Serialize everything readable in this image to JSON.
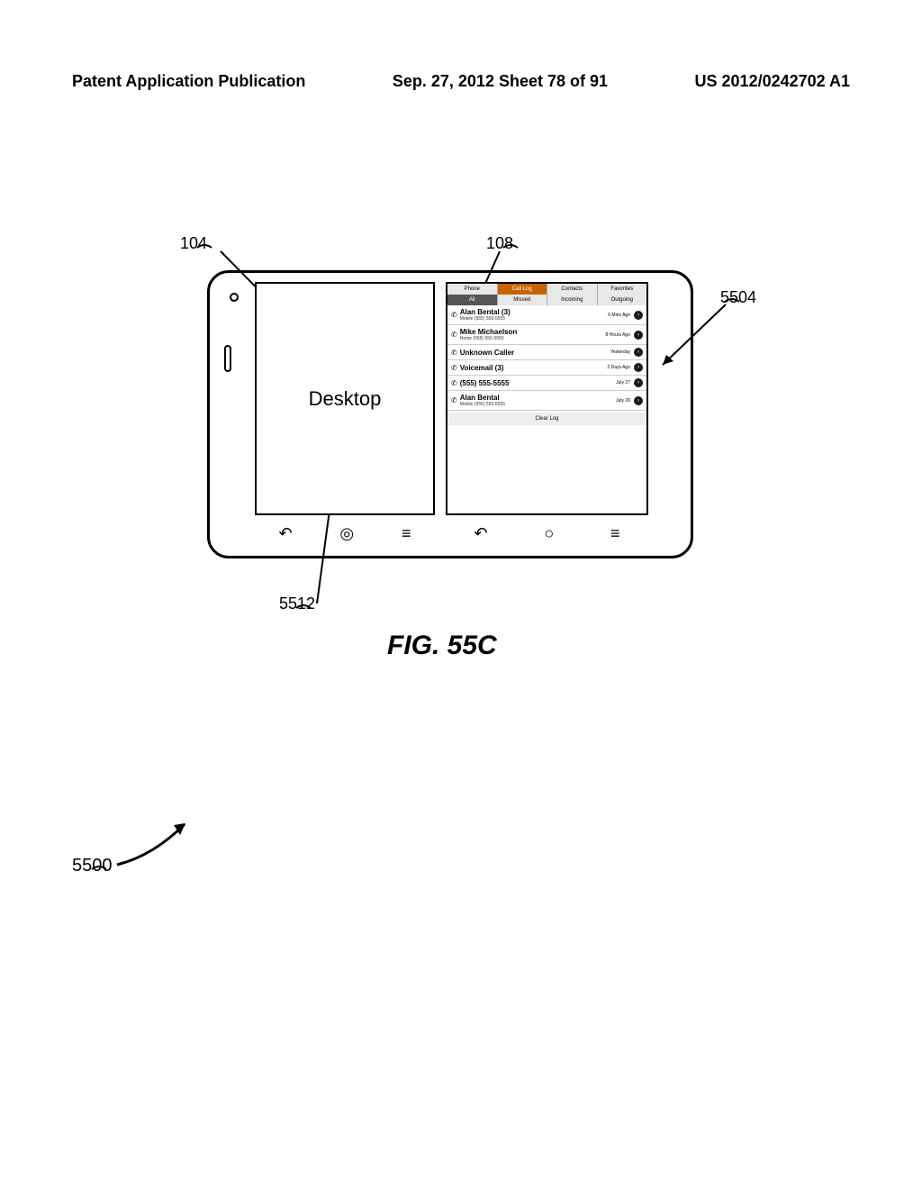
{
  "header": {
    "left": "Patent Application Publication",
    "center": "Sep. 27, 2012  Sheet 78 of 91",
    "right": "US 2012/0242702 A1"
  },
  "refs": {
    "r104": "104",
    "r108": "108",
    "r5504": "5504",
    "r5512": "5512",
    "r5500": "5500"
  },
  "fig_label": "FIG. 55C",
  "left_screen": {
    "label": "Desktop"
  },
  "nav_icons": {
    "back": "↶",
    "home_circle": "◎",
    "home_house": "⌂",
    "menu": "≡",
    "circle_o": "○"
  },
  "right_screen": {
    "tabs_top": [
      {
        "label": "Phone",
        "active": false
      },
      {
        "label": "Call Log",
        "active": true
      },
      {
        "label": "Contacts",
        "active": false
      },
      {
        "label": "Favorites",
        "active": false
      }
    ],
    "tabs_mid": [
      {
        "label": "All",
        "dark": true
      },
      {
        "label": "Missed",
        "dark": false
      },
      {
        "label": "Incoming",
        "dark": false
      },
      {
        "label": "Outgoing",
        "dark": false
      }
    ],
    "calls": [
      {
        "name": "Alan Bental (3)",
        "sub": "Mobile (555) 555-5555",
        "time": "6 Mins Ago"
      },
      {
        "name": "Mike Michaelson",
        "sub": "Home (555) 555-5555",
        "time": "8 Hours Ago"
      },
      {
        "name": "Unknown Caller",
        "sub": "",
        "time": "Yesterday"
      },
      {
        "name": "Voicemail (3)",
        "sub": "",
        "time": "2 Days Ago"
      },
      {
        "name": "(555) 555-5555",
        "sub": "",
        "time": "July 27"
      },
      {
        "name": "Alan Bental",
        "sub": "Mobile (555) 555-5555",
        "time": "July 26"
      }
    ],
    "clear": "Clear Log",
    "handset_glyph": "✆",
    "info_glyph": "›"
  },
  "colors": {
    "tab_active_bg": "#c86400",
    "tab_bg": "#e8e8e8",
    "tab_dark_bg": "#555555",
    "info_dot_bg": "#1a1a1a"
  }
}
